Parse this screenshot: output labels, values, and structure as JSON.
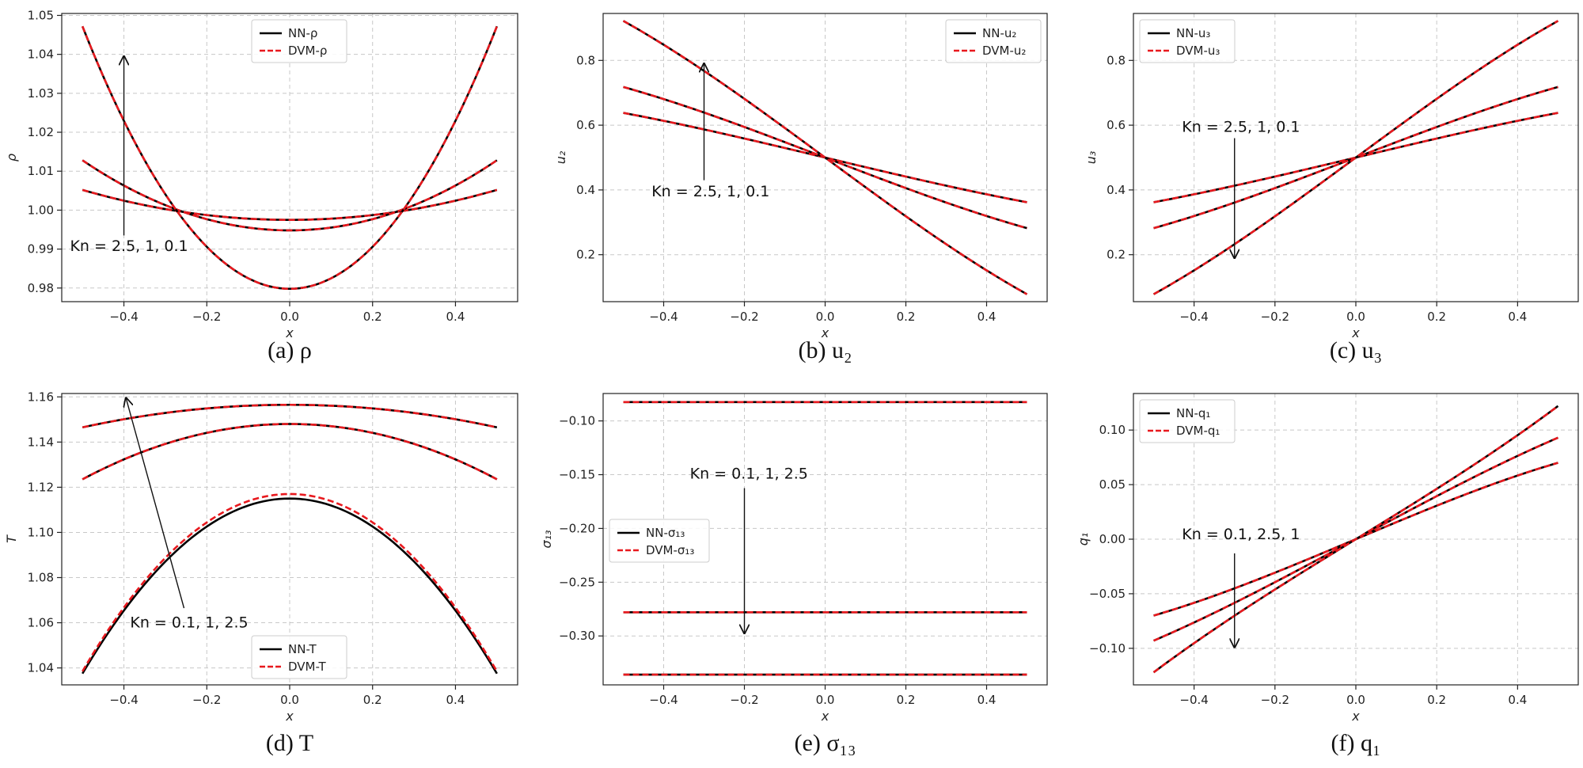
{
  "chart_data": [
    {
      "type": "line",
      "caption": "(a) ρ",
      "xlabel": "x",
      "ylabel": "ρ",
      "xlim": [
        -0.55,
        0.55
      ],
      "ylim": [
        0.9765,
        1.0505
      ],
      "xticks": [
        -0.4,
        -0.2,
        0.0,
        0.2,
        0.4
      ],
      "xticklabels": [
        "−0.4",
        "−0.2",
        "0.0",
        "0.2",
        "0.4"
      ],
      "yticks": [
        0.98,
        0.99,
        1.0,
        1.01,
        1.02,
        1.03,
        1.04,
        1.05
      ],
      "yticklabels": [
        "0.98",
        "0.99",
        "1.00",
        "1.01",
        "1.02",
        "1.03",
        "1.04",
        "1.05"
      ],
      "curve_form": "parabola",
      "legend": {
        "position": "top-center",
        "entries": [
          "NN-ρ",
          "DVM-ρ"
        ]
      },
      "annotation": {
        "text": "Kn = 2.5, 1, 0.1",
        "arrow_from": [
          -0.4,
          0.9935
        ],
        "arrow_to": [
          -0.4,
          1.0395
        ],
        "text_at": [
          -0.53,
          0.9895
        ]
      },
      "series": [
        {
          "label": "Kn=2.5",
          "nn": {
            "x": [
              -0.5,
              0.0,
              0.5
            ],
            "y": [
              1.0052,
              0.9975,
              1.0052
            ]
          },
          "dvm": {
            "x": [
              -0.5,
              0.0,
              0.5
            ],
            "y": [
              1.0052,
              0.9975,
              1.0052
            ]
          }
        },
        {
          "label": "Kn=1",
          "nn": {
            "x": [
              -0.5,
              0.0,
              0.5
            ],
            "y": [
              1.0128,
              0.9948,
              1.0128
            ]
          },
          "dvm": {
            "x": [
              -0.5,
              0.0,
              0.5
            ],
            "y": [
              1.0128,
              0.9948,
              1.0128
            ]
          }
        },
        {
          "label": "Kn=0.1",
          "nn": {
            "x": [
              -0.5,
              0.0,
              0.5
            ],
            "y": [
              1.0472,
              0.9798,
              1.0472
            ]
          },
          "dvm": {
            "x": [
              -0.5,
              0.0,
              0.5
            ],
            "y": [
              1.0472,
              0.9798,
              1.0472
            ]
          }
        }
      ]
    },
    {
      "type": "line",
      "caption": "(b) u₂",
      "xlabel": "x",
      "ylabel": "u₂",
      "xlim": [
        -0.55,
        0.55
      ],
      "ylim": [
        0.055,
        0.945
      ],
      "xticks": [
        -0.4,
        -0.2,
        0.0,
        0.2,
        0.4
      ],
      "xticklabels": [
        "−0.4",
        "−0.2",
        "0.0",
        "0.2",
        "0.4"
      ],
      "yticks": [
        0.2,
        0.4,
        0.6,
        0.8
      ],
      "yticklabels": [
        "0.2",
        "0.4",
        "0.6",
        "0.8"
      ],
      "curve_form": "odd",
      "legend": {
        "position": "top-right",
        "entries": [
          "NN-u₂",
          "DVM-u₂"
        ]
      },
      "annotation": {
        "text": "Kn = 2.5, 1, 0.1",
        "arrow_from": [
          -0.3,
          0.43
        ],
        "arrow_to": [
          -0.3,
          0.79
        ],
        "text_at": [
          -0.43,
          0.38
        ]
      },
      "series": [
        {
          "label": "Kn=2.5",
          "nn": {
            "x": [
              -0.5,
              -0.25,
              0.0,
              0.25,
              0.5
            ],
            "y": [
              0.638,
              0.573,
              0.5,
              0.427,
              0.362
            ]
          },
          "dvm": {
            "x": [
              -0.5,
              -0.25,
              0.0,
              0.25,
              0.5
            ],
            "y": [
              0.638,
              0.573,
              0.5,
              0.427,
              0.362
            ]
          }
        },
        {
          "label": "Kn=1",
          "nn": {
            "x": [
              -0.5,
              -0.25,
              0.0,
              0.25,
              0.5
            ],
            "y": [
              0.718,
              0.617,
              0.5,
              0.383,
              0.282
            ]
          },
          "dvm": {
            "x": [
              -0.5,
              -0.25,
              0.0,
              0.25,
              0.5
            ],
            "y": [
              0.718,
              0.617,
              0.5,
              0.383,
              0.282
            ]
          }
        },
        {
          "label": "Kn=0.1",
          "nn": {
            "x": [
              -0.5,
              -0.25,
              0.0,
              0.25,
              0.5
            ],
            "y": [
              0.922,
              0.725,
              0.5,
              0.275,
              0.078
            ]
          },
          "dvm": {
            "x": [
              -0.5,
              -0.25,
              0.0,
              0.25,
              0.5
            ],
            "y": [
              0.922,
              0.725,
              0.5,
              0.275,
              0.078
            ]
          }
        }
      ]
    },
    {
      "type": "line",
      "caption": "(c) u₃",
      "xlabel": "x",
      "ylabel": "u₃",
      "xlim": [
        -0.55,
        0.55
      ],
      "ylim": [
        0.055,
        0.945
      ],
      "xticks": [
        -0.4,
        -0.2,
        0.0,
        0.2,
        0.4
      ],
      "xticklabels": [
        "−0.4",
        "−0.2",
        "0.0",
        "0.2",
        "0.4"
      ],
      "yticks": [
        0.2,
        0.4,
        0.6,
        0.8
      ],
      "yticklabels": [
        "0.2",
        "0.4",
        "0.6",
        "0.8"
      ],
      "curve_form": "odd",
      "legend": {
        "position": "top-left",
        "entries": [
          "NN-u₃",
          "DVM-u₃"
        ]
      },
      "annotation": {
        "text": "Kn = 2.5, 1, 0.1",
        "arrow_from": [
          -0.3,
          0.56
        ],
        "arrow_to": [
          -0.3,
          0.19
        ],
        "text_at": [
          -0.43,
          0.58
        ]
      },
      "series": [
        {
          "label": "Kn=2.5",
          "nn": {
            "x": [
              -0.5,
              -0.25,
              0.0,
              0.25,
              0.5
            ],
            "y": [
              0.362,
              0.427,
              0.5,
              0.573,
              0.638
            ]
          },
          "dvm": {
            "x": [
              -0.5,
              -0.25,
              0.0,
              0.25,
              0.5
            ],
            "y": [
              0.362,
              0.427,
              0.5,
              0.573,
              0.638
            ]
          }
        },
        {
          "label": "Kn=1",
          "nn": {
            "x": [
              -0.5,
              -0.25,
              0.0,
              0.25,
              0.5
            ],
            "y": [
              0.282,
              0.383,
              0.5,
              0.617,
              0.718
            ]
          },
          "dvm": {
            "x": [
              -0.5,
              -0.25,
              0.0,
              0.25,
              0.5
            ],
            "y": [
              0.282,
              0.383,
              0.5,
              0.617,
              0.718
            ]
          }
        },
        {
          "label": "Kn=0.1",
          "nn": {
            "x": [
              -0.5,
              -0.25,
              0.0,
              0.25,
              0.5
            ],
            "y": [
              0.078,
              0.275,
              0.5,
              0.725,
              0.922
            ]
          },
          "dvm": {
            "x": [
              -0.5,
              -0.25,
              0.0,
              0.25,
              0.5
            ],
            "y": [
              0.078,
              0.275,
              0.5,
              0.725,
              0.922
            ]
          }
        }
      ]
    },
    {
      "type": "line",
      "caption": "(d) T",
      "xlabel": "x",
      "ylabel": "T",
      "xlim": [
        -0.55,
        0.55
      ],
      "ylim": [
        1.0325,
        1.1615
      ],
      "xticks": [
        -0.4,
        -0.2,
        0.0,
        0.2,
        0.4
      ],
      "xticklabels": [
        "−0.4",
        "−0.2",
        "0.0",
        "0.2",
        "0.4"
      ],
      "yticks": [
        1.04,
        1.06,
        1.08,
        1.1,
        1.12,
        1.14,
        1.16
      ],
      "yticklabels": [
        "1.04",
        "1.06",
        "1.08",
        "1.10",
        "1.12",
        "1.14",
        "1.16"
      ],
      "curve_form": "parabola",
      "legend": {
        "position": "bottom-center",
        "entries": [
          "NN-T",
          "DVM-T"
        ]
      },
      "annotation": {
        "text": "Kn = 0.1, 1, 2.5",
        "arrow_from": [
          -0.255,
          1.0665
        ],
        "arrow_to": [
          -0.395,
          1.1595
        ],
        "text_at": [
          -0.385,
          1.058
        ]
      },
      "series": [
        {
          "label": "Kn=0.1",
          "nn": {
            "x": [
              -0.5,
              0.0,
              0.5
            ],
            "y": [
              1.0375,
              1.115,
              1.0375
            ]
          },
          "dvm": {
            "x": [
              -0.5,
              0.0,
              0.5
            ],
            "y": [
              1.0385,
              1.117,
              1.0385
            ]
          }
        },
        {
          "label": "Kn=1",
          "nn": {
            "x": [
              -0.5,
              0.0,
              0.5
            ],
            "y": [
              1.1235,
              1.148,
              1.1235
            ]
          },
          "dvm": {
            "x": [
              -0.5,
              0.0,
              0.5
            ],
            "y": [
              1.1235,
              1.148,
              1.1235
            ]
          }
        },
        {
          "label": "Kn=2.5",
          "nn": {
            "x": [
              -0.5,
              0.0,
              0.5
            ],
            "y": [
              1.1465,
              1.1565,
              1.1465
            ]
          },
          "dvm": {
            "x": [
              -0.5,
              0.0,
              0.5
            ],
            "y": [
              1.1465,
              1.1565,
              1.1465
            ]
          }
        }
      ]
    },
    {
      "type": "line",
      "caption": "(e) σ₁₃",
      "xlabel": "x",
      "ylabel": "σ₁₃",
      "xlim": [
        -0.55,
        0.55
      ],
      "ylim": [
        -0.3455,
        -0.0745
      ],
      "xticks": [
        -0.4,
        -0.2,
        0.0,
        0.2,
        0.4
      ],
      "xticklabels": [
        "−0.4",
        "−0.2",
        "0.0",
        "0.2",
        "0.4"
      ],
      "yticks": [
        -0.1,
        -0.15,
        -0.2,
        -0.25,
        -0.3
      ],
      "yticklabels": [
        "−0.10",
        "−0.15",
        "−0.20",
        "−0.25",
        "−0.30"
      ],
      "curve_form": "line",
      "legend": {
        "position": "center-left",
        "entries": [
          "NN-σ₁₃",
          "DVM-σ₁₃"
        ]
      },
      "annotation": {
        "text": "Kn = 0.1, 1, 2.5",
        "arrow_from": [
          -0.2,
          -0.1625
        ],
        "arrow_to": [
          -0.2,
          -0.2975
        ],
        "text_at": [
          -0.335,
          -0.1535
        ]
      },
      "series": [
        {
          "label": "Kn=0.1",
          "nn": {
            "x": [
              -0.5,
              0.5
            ],
            "y": [
              -0.0825,
              -0.0825
            ]
          },
          "dvm": {
            "x": [
              -0.5,
              0.5
            ],
            "y": [
              -0.0825,
              -0.0825
            ]
          }
        },
        {
          "label": "Kn=1",
          "nn": {
            "x": [
              -0.5,
              0.5
            ],
            "y": [
              -0.278,
              -0.278
            ]
          },
          "dvm": {
            "x": [
              -0.5,
              0.5
            ],
            "y": [
              -0.278,
              -0.278
            ]
          }
        },
        {
          "label": "Kn=2.5",
          "nn": {
            "x": [
              -0.5,
              0.5
            ],
            "y": [
              -0.336,
              -0.336
            ]
          },
          "dvm": {
            "x": [
              -0.5,
              0.5
            ],
            "y": [
              -0.336,
              -0.336
            ]
          }
        }
      ]
    },
    {
      "type": "line",
      "caption": "(f) q₁",
      "xlabel": "x",
      "ylabel": "q₁",
      "xlim": [
        -0.55,
        0.55
      ],
      "ylim": [
        -0.1335,
        0.1335
      ],
      "xticks": [
        -0.4,
        -0.2,
        0.0,
        0.2,
        0.4
      ],
      "xticklabels": [
        "−0.4",
        "−0.2",
        "0.0",
        "0.2",
        "0.4"
      ],
      "yticks": [
        -0.1,
        -0.05,
        0.0,
        0.05,
        0.1
      ],
      "yticklabels": [
        "−0.10",
        "−0.05",
        "0.00",
        "0.05",
        "0.10"
      ],
      "curve_form": "odd",
      "legend": {
        "position": "top-left",
        "entries": [
          "NN-q₁",
          "DVM-q₁"
        ]
      },
      "annotation": {
        "text": "Kn = 0.1, 2.5, 1",
        "arrow_from": [
          -0.3,
          -0.013
        ],
        "arrow_to": [
          -0.3,
          -0.099
        ],
        "text_at": [
          -0.43,
          0.0
        ]
      },
      "series": [
        {
          "label": "Kn=0.1",
          "nn": {
            "x": [
              -0.5,
              -0.25,
              0.0,
              0.25,
              0.5
            ],
            "y": [
              -0.07,
              -0.038,
              0.0,
              0.038,
              0.07
            ]
          },
          "dvm": {
            "x": [
              -0.5,
              -0.25,
              0.0,
              0.25,
              0.5
            ],
            "y": [
              -0.07,
              -0.038,
              0.0,
              0.038,
              0.07
            ]
          }
        },
        {
          "label": "Kn=2.5",
          "nn": {
            "x": [
              -0.5,
              -0.25,
              0.0,
              0.25,
              0.5
            ],
            "y": [
              -0.093,
              -0.049,
              0.0,
              0.049,
              0.093
            ]
          },
          "dvm": {
            "x": [
              -0.5,
              -0.25,
              0.0,
              0.25,
              0.5
            ],
            "y": [
              -0.093,
              -0.049,
              0.0,
              0.049,
              0.093
            ]
          }
        },
        {
          "label": "Kn=1",
          "nn": {
            "x": [
              -0.5,
              -0.25,
              0.0,
              0.25,
              0.5
            ],
            "y": [
              -0.122,
              -0.058,
              0.0,
              0.058,
              0.122
            ]
          },
          "dvm": {
            "x": [
              -0.5,
              -0.25,
              0.0,
              0.25,
              0.5
            ],
            "y": [
              -0.122,
              -0.058,
              0.0,
              0.058,
              0.122
            ]
          }
        }
      ]
    }
  ],
  "style": {
    "nn_color": "#000000",
    "dvm_color": "#e8191e",
    "grid": true
  }
}
